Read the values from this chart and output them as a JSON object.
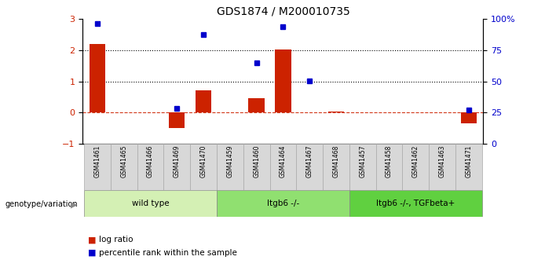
{
  "title": "GDS1874 / M200010735",
  "samples": [
    "GSM41461",
    "GSM41465",
    "GSM41466",
    "GSM41469",
    "GSM41470",
    "GSM41459",
    "GSM41460",
    "GSM41464",
    "GSM41467",
    "GSM41468",
    "GSM41457",
    "GSM41458",
    "GSM41462",
    "GSM41463",
    "GSM41471"
  ],
  "log_ratio": [
    2.2,
    0.0,
    0.0,
    -0.5,
    0.7,
    0.0,
    0.45,
    2.02,
    0.0,
    0.03,
    0.0,
    0.0,
    0.0,
    0.0,
    -0.35
  ],
  "percentile_rank_left": [
    2.85,
    null,
    null,
    0.12,
    2.5,
    null,
    1.6,
    2.75,
    1.02,
    null,
    null,
    null,
    null,
    null,
    0.08
  ],
  "groups": [
    {
      "label": "wild type",
      "start": 0,
      "end": 4,
      "color": "#d4f0b4"
    },
    {
      "label": "Itgb6 -/-",
      "start": 5,
      "end": 9,
      "color": "#90e070"
    },
    {
      "label": "Itgb6 -/-, TGFbeta+",
      "start": 10,
      "end": 14,
      "color": "#60d040"
    }
  ],
  "bar_color": "#cc2200",
  "dot_color": "#0000cc",
  "left_ylim": [
    -1,
    3
  ],
  "right_ylim": [
    0,
    100
  ],
  "right_yticks": [
    0,
    25,
    50,
    75,
    100
  ],
  "right_yticklabels": [
    "0",
    "25",
    "50",
    "75",
    "100%"
  ],
  "left_yticks": [
    -1,
    0,
    1,
    2,
    3
  ],
  "hline_values": [
    2.0,
    1.0
  ],
  "legend_items": [
    "log ratio",
    "percentile rank within the sample"
  ],
  "genotype_label": "genotype/variation",
  "bar_width": 0.6,
  "sample_box_color": "#d8d8d8",
  "sample_box_edge": "#aaaaaa"
}
